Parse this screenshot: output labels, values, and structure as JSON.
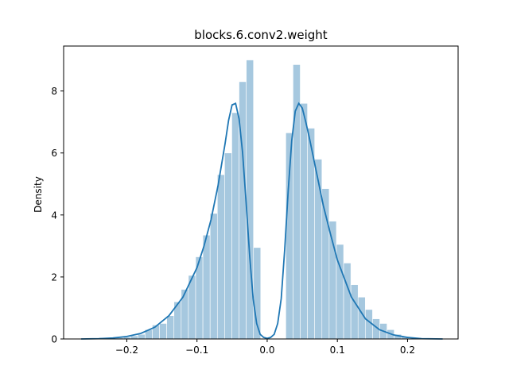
{
  "chart_data": {
    "type": "histogram",
    "title": "blocks.6.conv2.weight",
    "xlabel": "",
    "ylabel": "Density",
    "xlim": [
      -0.29,
      0.272
    ],
    "ylim": [
      0,
      9.45
    ],
    "xticks": [
      -0.2,
      -0.1,
      0.0,
      0.1,
      0.2
    ],
    "xtick_labels": [
      "−0.2",
      "−0.1",
      "0.0",
      "0.1",
      "0.2"
    ],
    "yticks": [
      0,
      2,
      4,
      6,
      8
    ],
    "ytick_labels": [
      "0",
      "2",
      "4",
      "6",
      "8"
    ],
    "grid": false,
    "legend": "none",
    "bar_color": "#a6c8df",
    "line_color": "#1f77b4",
    "histogram": {
      "bin_width": 0.0103,
      "bins": [
        {
          "x0": -0.2255,
          "x1": -0.2152,
          "density": 0.02
        },
        {
          "x0": -0.2152,
          "x1": -0.2049,
          "density": 0.04
        },
        {
          "x0": -0.2049,
          "x1": -0.1946,
          "density": 0.06
        },
        {
          "x0": -0.1946,
          "x1": -0.1843,
          "density": 0.1
        },
        {
          "x0": -0.1843,
          "x1": -0.174,
          "density": 0.15
        },
        {
          "x0": -0.174,
          "x1": -0.1637,
          "density": 0.3
        },
        {
          "x0": -0.1637,
          "x1": -0.1534,
          "density": 0.45
        },
        {
          "x0": -0.1534,
          "x1": -0.1431,
          "density": 0.5
        },
        {
          "x0": -0.1431,
          "x1": -0.1328,
          "density": 0.75
        },
        {
          "x0": -0.1328,
          "x1": -0.1225,
          "density": 1.2
        },
        {
          "x0": -0.1225,
          "x1": -0.1122,
          "density": 1.6
        },
        {
          "x0": -0.1122,
          "x1": -0.1019,
          "density": 2.05
        },
        {
          "x0": -0.1019,
          "x1": -0.0916,
          "density": 2.65
        },
        {
          "x0": -0.0916,
          "x1": -0.0813,
          "density": 3.35
        },
        {
          "x0": -0.0813,
          "x1": -0.071,
          "density": 4.05
        },
        {
          "x0": -0.071,
          "x1": -0.0607,
          "density": 5.3
        },
        {
          "x0": -0.0607,
          "x1": -0.0504,
          "density": 6.0
        },
        {
          "x0": -0.0504,
          "x1": -0.0401,
          "density": 7.3
        },
        {
          "x0": -0.0401,
          "x1": -0.0298,
          "density": 8.3
        },
        {
          "x0": -0.0298,
          "x1": -0.0195,
          "density": 9.0
        },
        {
          "x0": -0.0195,
          "x1": -0.0092,
          "density": 2.95
        },
        {
          "x0": 0.0265,
          "x1": 0.0368,
          "density": 6.65
        },
        {
          "x0": 0.0368,
          "x1": 0.0471,
          "density": 8.85
        },
        {
          "x0": 0.0471,
          "x1": 0.0574,
          "density": 7.6
        },
        {
          "x0": 0.0574,
          "x1": 0.0677,
          "density": 6.8
        },
        {
          "x0": 0.0677,
          "x1": 0.078,
          "density": 5.8
        },
        {
          "x0": 0.078,
          "x1": 0.0883,
          "density": 4.85
        },
        {
          "x0": 0.0883,
          "x1": 0.0986,
          "density": 3.8
        },
        {
          "x0": 0.0986,
          "x1": 0.1089,
          "density": 3.05
        },
        {
          "x0": 0.1089,
          "x1": 0.1192,
          "density": 2.45
        },
        {
          "x0": 0.1192,
          "x1": 0.1295,
          "density": 1.75
        },
        {
          "x0": 0.1295,
          "x1": 0.1398,
          "density": 1.35
        },
        {
          "x0": 0.1398,
          "x1": 0.1501,
          "density": 0.95
        },
        {
          "x0": 0.1501,
          "x1": 0.1604,
          "density": 0.65
        },
        {
          "x0": 0.1604,
          "x1": 0.1707,
          "density": 0.5
        },
        {
          "x0": 0.1707,
          "x1": 0.181,
          "density": 0.3
        },
        {
          "x0": 0.181,
          "x1": 0.1913,
          "density": 0.15
        },
        {
          "x0": 0.1913,
          "x1": 0.2016,
          "density": 0.08
        }
      ]
    },
    "kde": {
      "x": [
        -0.265,
        -0.24,
        -0.22,
        -0.2,
        -0.18,
        -0.16,
        -0.14,
        -0.12,
        -0.1,
        -0.09,
        -0.08,
        -0.07,
        -0.06,
        -0.055,
        -0.05,
        -0.045,
        -0.04,
        -0.035,
        -0.03,
        -0.025,
        -0.02,
        -0.015,
        -0.01,
        -0.005,
        0.0,
        0.005,
        0.01,
        0.015,
        0.02,
        0.025,
        0.03,
        0.035,
        0.04,
        0.045,
        0.05,
        0.055,
        0.06,
        0.07,
        0.08,
        0.09,
        0.1,
        0.12,
        0.14,
        0.16,
        0.18,
        0.2,
        0.22,
        0.25
      ],
      "y": [
        0.0,
        0.01,
        0.03,
        0.08,
        0.18,
        0.38,
        0.75,
        1.35,
        2.3,
        3.0,
        3.85,
        4.95,
        6.3,
        7.05,
        7.55,
        7.6,
        7.1,
        6.0,
        4.4,
        2.7,
        1.3,
        0.5,
        0.15,
        0.05,
        0.02,
        0.05,
        0.15,
        0.5,
        1.3,
        2.9,
        4.8,
        6.4,
        7.35,
        7.6,
        7.45,
        7.0,
        6.5,
        5.4,
        4.3,
        3.4,
        2.55,
        1.35,
        0.65,
        0.3,
        0.13,
        0.05,
        0.01,
        0.0
      ]
    }
  }
}
